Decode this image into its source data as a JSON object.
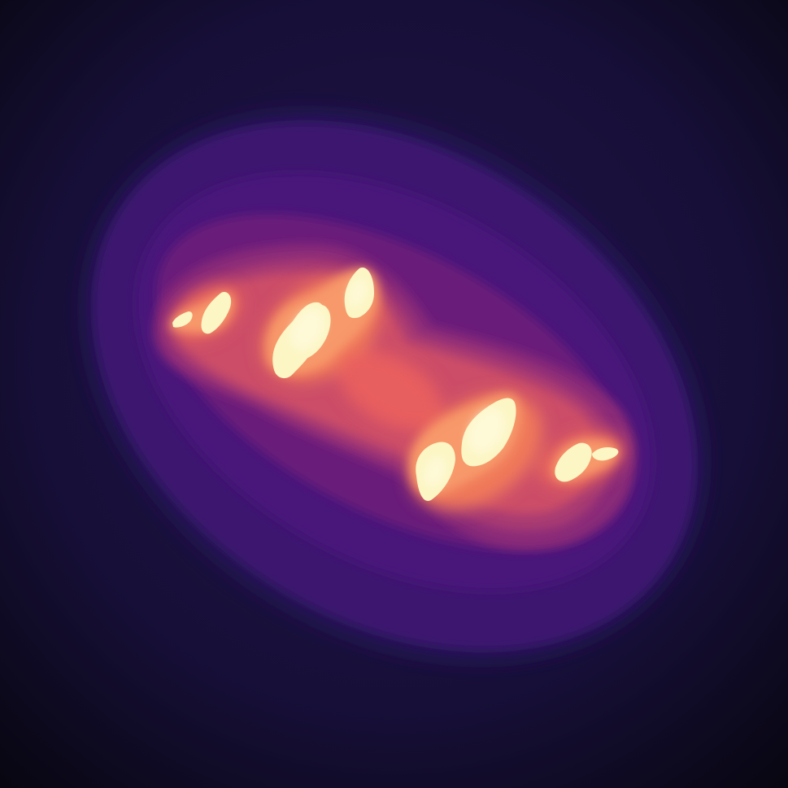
{
  "render": {
    "kind": "escape-time fractal (filled Julia set)",
    "colormap": "magma",
    "palette": [
      "#0b0a1a",
      "#1a1040",
      "#2a1560",
      "#3f1572",
      "#5a1a78",
      "#7a2478",
      "#9e3474",
      "#c74a6a",
      "#ea6a5a",
      "#f79a6c",
      "#fcd39a",
      "#fcf6c4"
    ],
    "background_color": "#0b0a1a",
    "inner_color": "#fcf6c4",
    "julia_c": [
      -0.8,
      0.156
    ]
  }
}
